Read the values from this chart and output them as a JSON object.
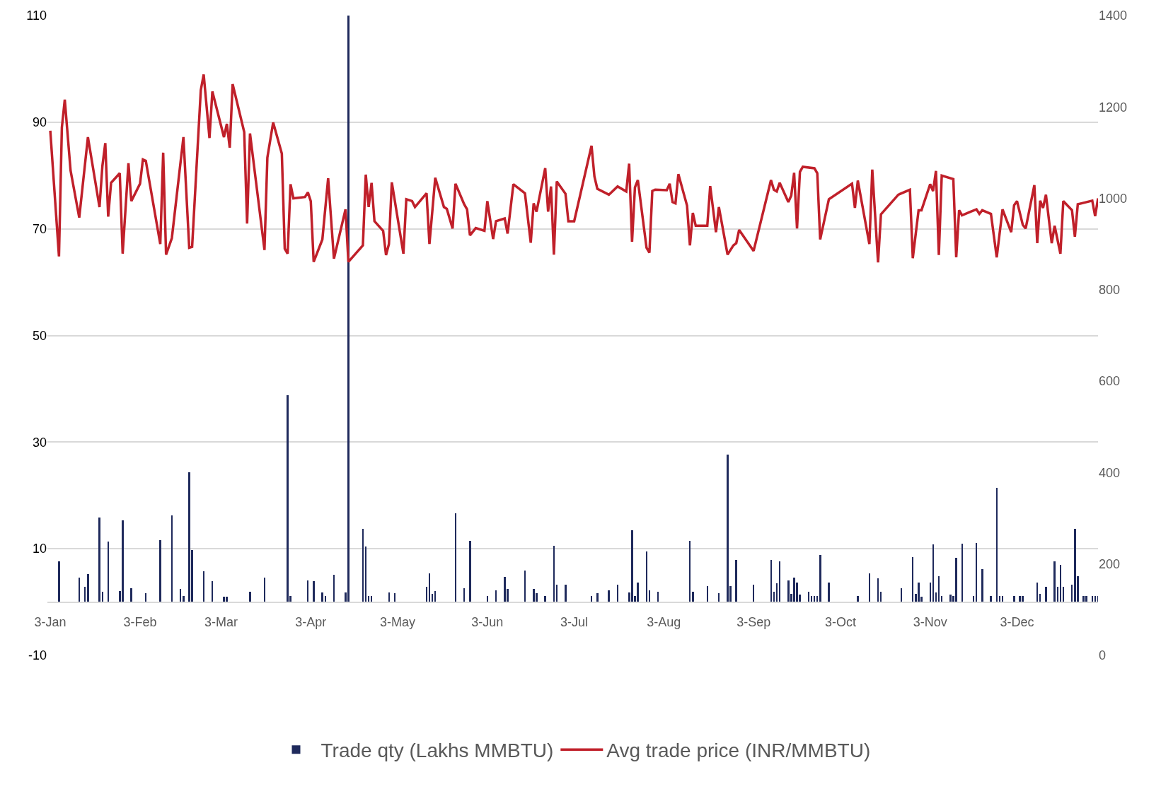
{
  "chart_data": {
    "type": "bar",
    "grid": "y",
    "legend": "bottom",
    "xlim": [
      "--01-02",
      "--12-31"
    ],
    "xticks": [
      {
        "value": "--01-03",
        "label": "3-Jan"
      },
      {
        "value": "--02-03",
        "label": "3-Feb"
      },
      {
        "value": "--03-03",
        "label": "3-Mar"
      },
      {
        "value": "--04-03",
        "label": "3-Apr"
      },
      {
        "value": "--05-03",
        "label": "3-May"
      },
      {
        "value": "--06-03",
        "label": "3-Jun"
      },
      {
        "value": "--07-03",
        "label": "3-Jul"
      },
      {
        "value": "--08-03",
        "label": "3-Aug"
      },
      {
        "value": "--09-03",
        "label": "3-Sep"
      },
      {
        "value": "--10-03",
        "label": "3-Oct"
      },
      {
        "value": "--11-03",
        "label": "3-Nov"
      },
      {
        "value": "--12-03",
        "label": "3-Dec"
      }
    ],
    "ylim": [
      -10,
      110
    ],
    "yticks": [
      -10,
      10,
      30,
      50,
      70,
      90,
      110
    ],
    "y2lim": [
      0,
      1400
    ],
    "y2ticks": [
      0,
      200,
      400,
      600,
      800,
      1000,
      1200,
      1400
    ],
    "series": [
      {
        "name": "Trade qty (Lakhs MMBTU)",
        "color": "#1f2a5c",
        "x": [
          "--01-06",
          "--01-13",
          "--01-15",
          "--01-16",
          "--01-20",
          "--01-21",
          "--01-23",
          "--01-27",
          "--01-28",
          "--01-31",
          "--02-05",
          "--02-10",
          "--02-14",
          "--02-17",
          "--02-18",
          "--02-20",
          "--02-21",
          "--02-25",
          "--02-28",
          "--03-04",
          "--03-05",
          "--03-13",
          "--03-18",
          "--03-26",
          "--03-27",
          "--04-02",
          "--04-04",
          "--04-07",
          "--04-08",
          "--04-11",
          "--04-15",
          "--04-16",
          "--04-21",
          "--04-22",
          "--04-23",
          "--04-24",
          "--04-30",
          "--05-02",
          "--05-13",
          "--05-14",
          "--05-15",
          "--05-16",
          "--05-23",
          "--05-26",
          "--05-28",
          "--06-03",
          "--06-06",
          "--06-09",
          "--06-10",
          "--06-16",
          "--06-19",
          "--06-20",
          "--06-23",
          "--06-26",
          "--06-27",
          "--06-30",
          "--07-09",
          "--07-11",
          "--07-15",
          "--07-18",
          "--07-22",
          "--07-23",
          "--07-24",
          "--07-25",
          "--07-28",
          "--07-29",
          "--08-01",
          "--08-12",
          "--08-13",
          "--08-18",
          "--08-22",
          "--08-25",
          "--08-26",
          "--08-28",
          "--09-03",
          "--09-09",
          "--09-10",
          "--09-11",
          "--09-12",
          "--09-15",
          "--09-16",
          "--09-17",
          "--09-18",
          "--09-19",
          "--09-22",
          "--09-23",
          "--09-24",
          "--09-25",
          "--09-26",
          "--09-29",
          "--10-09",
          "--10-13",
          "--10-16",
          "--10-17",
          "--10-24",
          "--10-28",
          "--10-29",
          "--10-30",
          "--10-31",
          "--11-03",
          "--11-04",
          "--11-05",
          "--11-06",
          "--11-07",
          "--11-10",
          "--11-11",
          "--11-12",
          "--11-14",
          "--11-18",
          "--11-19",
          "--11-21",
          "--11-24",
          "--11-26",
          "--11-27",
          "--11-28",
          "--12-02",
          "--12-04",
          "--12-05",
          "--12-10",
          "--12-11",
          "--12-13",
          "--12-16",
          "--12-17",
          "--12-18",
          "--12-19",
          "--12-22",
          "--12-23",
          "--12-24",
          "--12-26",
          "--12-27",
          "--12-29",
          "--12-30",
          "--12-31"
        ],
        "values": [
          7.6,
          4.6,
          2.9,
          5.3,
          15.9,
          1.9,
          11.3,
          2.1,
          15.3,
          2.6,
          1.7,
          11.6,
          16.2,
          2.5,
          1.1,
          24.3,
          9.7,
          5.8,
          3.9,
          1.0,
          1.0,
          1.9,
          4.6,
          38.8,
          1.1,
          4.0,
          3.9,
          1.8,
          1.1,
          5.1,
          1.8,
          110,
          13.7,
          10.4,
          1.1,
          1.1,
          1.8,
          1.7,
          2.8,
          5.4,
          1.5,
          2.1,
          16.6,
          2.6,
          11.5,
          1.1,
          2.2,
          4.7,
          2.5,
          5.9,
          2.4,
          1.7,
          1.2,
          10.6,
          3.2,
          3.2,
          1.1,
          1.7,
          2.2,
          3.2,
          1.8,
          13.5,
          1.1,
          3.7,
          9.5,
          2.2,
          1.9,
          11.5,
          1.9,
          3.0,
          1.7,
          27.7,
          3.0,
          7.9,
          3.2,
          7.9,
          1.9,
          3.5,
          7.7,
          4.1,
          1.5,
          4.6,
          3.7,
          1.4,
          1.9,
          1.1,
          1.1,
          1.1,
          8.8,
          3.7,
          1.1,
          5.4,
          4.4,
          1.9,
          2.6,
          8.4,
          1.5,
          3.7,
          1.0,
          3.7,
          10.8,
          1.8,
          4.8,
          1.2,
          1.4,
          1.1,
          8.3,
          11.0,
          1.2,
          11.1,
          6.2,
          1.1,
          21.4,
          1.1,
          1.1,
          1.1,
          1.1,
          1.1,
          3.7,
          1.5,
          2.9,
          7.7,
          2.9,
          7.0,
          2.9,
          3.3,
          13.7,
          4.8,
          1.1,
          1.1,
          1.1,
          1.1,
          1.1
        ]
      },
      {
        "name": "Avg trade price (INR/MMBTU)",
        "type": "line",
        "axis": "y2",
        "color": "#c0202a",
        "marker": "none",
        "line_style": "solid",
        "x": [
          "--01-03",
          "--01-06",
          "--01-07",
          "--01-08",
          "--01-10",
          "--01-13",
          "--01-16",
          "--01-20",
          "--01-21",
          "--01-22",
          "--01-23",
          "--01-24",
          "--01-27",
          "--01-28",
          "--01-30",
          "--01-31",
          "--02-03",
          "--02-04",
          "--02-05",
          "--02-10",
          "--02-11",
          "--02-12",
          "--02-14",
          "--02-18",
          "--02-20",
          "--02-21",
          "--02-24",
          "--02-25",
          "--02-27",
          "--02-28",
          "--03-04",
          "--03-05",
          "--03-06",
          "--03-07",
          "--03-11",
          "--03-12",
          "--03-13",
          "--03-18",
          "--03-19",
          "--03-21",
          "--03-24",
          "--03-25",
          "--03-26",
          "--03-27",
          "--03-28",
          "--04-01",
          "--04-02",
          "--04-03",
          "--04-04",
          "--04-07",
          "--04-09",
          "--04-11",
          "--04-15",
          "--04-16",
          "--04-21",
          "--04-22",
          "--04-23",
          "--04-24",
          "--04-25",
          "--04-28",
          "--04-29",
          "--04-30",
          "--05-01",
          "--05-05",
          "--05-06",
          "--05-08",
          "--05-09",
          "--05-13",
          "--05-14",
          "--05-16",
          "--05-19",
          "--05-20",
          "--05-22",
          "--05-23",
          "--05-26",
          "--05-27",
          "--05-28",
          "--05-30",
          "--06-02",
          "--06-03",
          "--06-05",
          "--06-06",
          "--06-09",
          "--06-10",
          "--06-12",
          "--06-16",
          "--06-18",
          "--06-19",
          "--06-20",
          "--06-23",
          "--06-24",
          "--06-25",
          "--06-26",
          "--06-27",
          "--06-30",
          "--07-01",
          "--07-03",
          "--07-09",
          "--07-10",
          "--07-11",
          "--07-15",
          "--07-18",
          "--07-21",
          "--07-22",
          "--07-23",
          "--07-24",
          "--07-25",
          "--07-28",
          "--07-29",
          "--07-30",
          "--07-31",
          "--08-04",
          "--08-05",
          "--08-06",
          "--08-07",
          "--08-08",
          "--08-11",
          "--08-12",
          "--08-13",
          "--08-14",
          "--08-18",
          "--08-19",
          "--08-21",
          "--08-22",
          "--08-25",
          "--08-27",
          "--08-28",
          "--08-29",
          "--09-03",
          "--09-09",
          "--09-10",
          "--09-11",
          "--09-12",
          "--09-15",
          "--09-16",
          "--09-17",
          "--09-18",
          "--09-19",
          "--09-20",
          "--09-24",
          "--09-25",
          "--09-26",
          "--09-29",
          "--10-07",
          "--10-08",
          "--10-09",
          "--10-13",
          "--10-14",
          "--10-16",
          "--10-17",
          "--10-23",
          "--10-27",
          "--10-28",
          "--10-30",
          "--10-31",
          "--11-03",
          "--11-04",
          "--11-05",
          "--11-06",
          "--11-07",
          "--11-11",
          "--11-12",
          "--11-13",
          "--11-14",
          "--11-17",
          "--11-19",
          "--11-20",
          "--11-21",
          "--11-24",
          "--11-26",
          "--11-28",
          "--12-01",
          "--12-02",
          "--12-03",
          "--12-05",
          "--12-06",
          "--12-09",
          "--12-10",
          "--12-11",
          "--12-12",
          "--12-13",
          "--12-15",
          "--12-16",
          "--12-18",
          "--12-19",
          "--12-22",
          "--12-23",
          "--12-24",
          "--12-29",
          "--12-30",
          "--12-31"
        ],
        "values": [
          1148,
          873,
          1155,
          1216,
          1061,
          958,
          1134,
          981,
          1071,
          1121,
          960,
          1034,
          1055,
          879,
          1077,
          994,
          1032,
          1085,
          1082,
          900,
          1100,
          877,
          913,
          1134,
          892,
          894,
          1237,
          1271,
          1132,
          1234,
          1134,
          1163,
          1111,
          1250,
          1145,
          945,
          1142,
          887,
          1089,
          1166,
          1098,
          890,
          879,
          1031,
          1000,
          1003,
          1013,
          994,
          861,
          910,
          1044,
          868,
          976,
          861,
          897,
          1052,
          981,
          1034,
          950,
          929,
          876,
          900,
          1035,
          879,
          998,
          994,
          981,
          1011,
          900,
          1045,
          981,
          977,
          934,
          1032,
          987,
          976,
          919,
          935,
          929,
          994,
          911,
          950,
          956,
          923,
          1031,
          1011,
          903,
          989,
          971,
          1066,
          971,
          1026,
          877,
          1037,
          1010,
          950,
          950,
          1115,
          1048,
          1021,
          1008,
          1026,
          1015,
          1076,
          905,
          1024,
          1040,
          892,
          881,
          1016,
          1019,
          1018,
          1032,
          992,
          989,
          1053,
          984,
          897,
          968,
          940,
          940,
          1027,
          926,
          981,
          877,
          897,
          902,
          931,
          885,
          1040,
          1019,
          1015,
          1034,
          992,
          1006,
          1056,
          934,
          1058,
          1069,
          1066,
          1055,
          910,
          998,
          1032,
          979,
          1039,
          900,
          1063,
          860,
          965,
          1008,
          1019,
          869,
          974,
          974,
          1031,
          1016,
          1060,
          876,
          1050,
          1042,
          871,
          974,
          963,
          971,
          976,
          966,
          974,
          966,
          871,
          976,
          926,
          985,
          994,
          942,
          934,
          1029,
          902,
          995,
          979,
          1008,
          902,
          940,
          879,
          994,
          974,
          916,
          987,
          995,
          961,
          1000
        ]
      }
    ]
  }
}
